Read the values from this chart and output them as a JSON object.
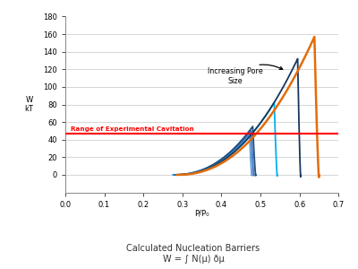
{
  "title_line1": "Calculated Nucleation Barriers",
  "title_line2": "W = ∫ N(μ) ðμ",
  "xlabel": "P/P₀",
  "ylabel": "W\nkT",
  "xlim": [
    0,
    0.7
  ],
  "ylim": [
    -20,
    180
  ],
  "yticks": [
    0,
    20,
    40,
    60,
    80,
    100,
    120,
    140,
    160,
    180
  ],
  "xticks": [
    0,
    0.1,
    0.2,
    0.3,
    0.4,
    0.5,
    0.6,
    0.7
  ],
  "red_line_y": 47,
  "red_line_label": "Range of Experimental Cavitation",
  "annotation_text": "Increasing Pore\nSize",
  "curves": [
    {
      "start": 0.275,
      "peak_x": 0.472,
      "peak_y": 46,
      "end_drop": 0.478,
      "color": "#5B9BD5",
      "lw": 1.3
    },
    {
      "start": 0.278,
      "peak_x": 0.476,
      "peak_y": 50,
      "end_drop": 0.483,
      "color": "#4472C4",
      "lw": 1.3
    },
    {
      "start": 0.28,
      "peak_x": 0.48,
      "peak_y": 55,
      "end_drop": 0.488,
      "color": "#1F4E79",
      "lw": 1.3
    },
    {
      "start": 0.282,
      "peak_x": 0.535,
      "peak_y": 82,
      "end_drop": 0.543,
      "color": "#00B0F0",
      "lw": 1.3
    },
    {
      "start": 0.284,
      "peak_x": 0.595,
      "peak_y": 132,
      "end_drop": 0.603,
      "color": "#17375E",
      "lw": 1.3
    },
    {
      "start": 0.286,
      "peak_x": 0.638,
      "peak_y": 157,
      "end_drop": 0.65,
      "color": "#E36C09",
      "lw": 1.8
    }
  ],
  "background_color": "#FFFFFF",
  "grid_color": "#D0D0D0"
}
